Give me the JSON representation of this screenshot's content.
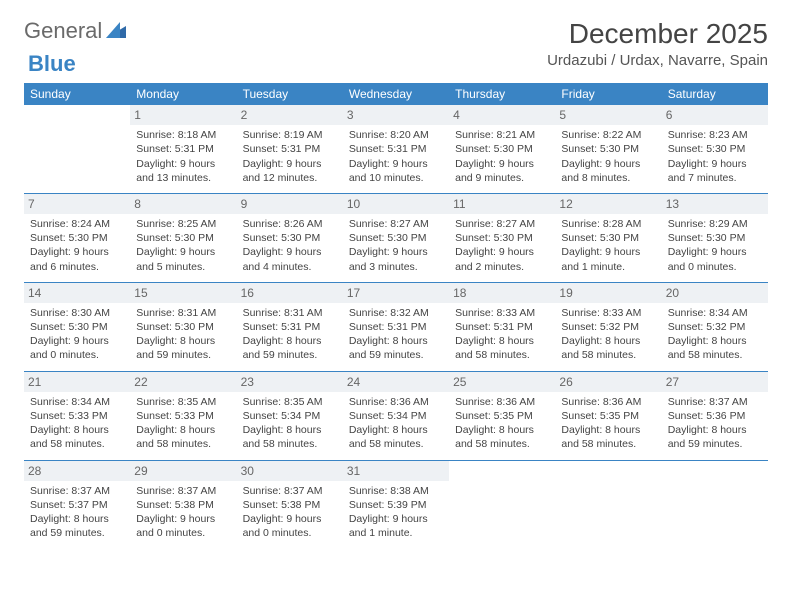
{
  "logo": {
    "text_general": "General",
    "text_blue": "Blue"
  },
  "title": "December 2025",
  "location": "Urdazubi / Urdax, Navarre, Spain",
  "colors": {
    "header_bg": "#3a84c4",
    "header_text": "#ffffff",
    "daynum_bg": "#eef1f4",
    "row_border": "#3a84c4",
    "text": "#444444"
  },
  "weekdays": [
    "Sunday",
    "Monday",
    "Tuesday",
    "Wednesday",
    "Thursday",
    "Friday",
    "Saturday"
  ],
  "weeks": [
    [
      {
        "empty": true
      },
      {
        "num": "1",
        "l1": "Sunrise: 8:18 AM",
        "l2": "Sunset: 5:31 PM",
        "l3": "Daylight: 9 hours",
        "l4": "and 13 minutes."
      },
      {
        "num": "2",
        "l1": "Sunrise: 8:19 AM",
        "l2": "Sunset: 5:31 PM",
        "l3": "Daylight: 9 hours",
        "l4": "and 12 minutes."
      },
      {
        "num": "3",
        "l1": "Sunrise: 8:20 AM",
        "l2": "Sunset: 5:31 PM",
        "l3": "Daylight: 9 hours",
        "l4": "and 10 minutes."
      },
      {
        "num": "4",
        "l1": "Sunrise: 8:21 AM",
        "l2": "Sunset: 5:30 PM",
        "l3": "Daylight: 9 hours",
        "l4": "and 9 minutes."
      },
      {
        "num": "5",
        "l1": "Sunrise: 8:22 AM",
        "l2": "Sunset: 5:30 PM",
        "l3": "Daylight: 9 hours",
        "l4": "and 8 minutes."
      },
      {
        "num": "6",
        "l1": "Sunrise: 8:23 AM",
        "l2": "Sunset: 5:30 PM",
        "l3": "Daylight: 9 hours",
        "l4": "and 7 minutes."
      }
    ],
    [
      {
        "num": "7",
        "l1": "Sunrise: 8:24 AM",
        "l2": "Sunset: 5:30 PM",
        "l3": "Daylight: 9 hours",
        "l4": "and 6 minutes."
      },
      {
        "num": "8",
        "l1": "Sunrise: 8:25 AM",
        "l2": "Sunset: 5:30 PM",
        "l3": "Daylight: 9 hours",
        "l4": "and 5 minutes."
      },
      {
        "num": "9",
        "l1": "Sunrise: 8:26 AM",
        "l2": "Sunset: 5:30 PM",
        "l3": "Daylight: 9 hours",
        "l4": "and 4 minutes."
      },
      {
        "num": "10",
        "l1": "Sunrise: 8:27 AM",
        "l2": "Sunset: 5:30 PM",
        "l3": "Daylight: 9 hours",
        "l4": "and 3 minutes."
      },
      {
        "num": "11",
        "l1": "Sunrise: 8:27 AM",
        "l2": "Sunset: 5:30 PM",
        "l3": "Daylight: 9 hours",
        "l4": "and 2 minutes."
      },
      {
        "num": "12",
        "l1": "Sunrise: 8:28 AM",
        "l2": "Sunset: 5:30 PM",
        "l3": "Daylight: 9 hours",
        "l4": "and 1 minute."
      },
      {
        "num": "13",
        "l1": "Sunrise: 8:29 AM",
        "l2": "Sunset: 5:30 PM",
        "l3": "Daylight: 9 hours",
        "l4": "and 0 minutes."
      }
    ],
    [
      {
        "num": "14",
        "l1": "Sunrise: 8:30 AM",
        "l2": "Sunset: 5:30 PM",
        "l3": "Daylight: 9 hours",
        "l4": "and 0 minutes."
      },
      {
        "num": "15",
        "l1": "Sunrise: 8:31 AM",
        "l2": "Sunset: 5:30 PM",
        "l3": "Daylight: 8 hours",
        "l4": "and 59 minutes."
      },
      {
        "num": "16",
        "l1": "Sunrise: 8:31 AM",
        "l2": "Sunset: 5:31 PM",
        "l3": "Daylight: 8 hours",
        "l4": "and 59 minutes."
      },
      {
        "num": "17",
        "l1": "Sunrise: 8:32 AM",
        "l2": "Sunset: 5:31 PM",
        "l3": "Daylight: 8 hours",
        "l4": "and 59 minutes."
      },
      {
        "num": "18",
        "l1": "Sunrise: 8:33 AM",
        "l2": "Sunset: 5:31 PM",
        "l3": "Daylight: 8 hours",
        "l4": "and 58 minutes."
      },
      {
        "num": "19",
        "l1": "Sunrise: 8:33 AM",
        "l2": "Sunset: 5:32 PM",
        "l3": "Daylight: 8 hours",
        "l4": "and 58 minutes."
      },
      {
        "num": "20",
        "l1": "Sunrise: 8:34 AM",
        "l2": "Sunset: 5:32 PM",
        "l3": "Daylight: 8 hours",
        "l4": "and 58 minutes."
      }
    ],
    [
      {
        "num": "21",
        "l1": "Sunrise: 8:34 AM",
        "l2": "Sunset: 5:33 PM",
        "l3": "Daylight: 8 hours",
        "l4": "and 58 minutes."
      },
      {
        "num": "22",
        "l1": "Sunrise: 8:35 AM",
        "l2": "Sunset: 5:33 PM",
        "l3": "Daylight: 8 hours",
        "l4": "and 58 minutes."
      },
      {
        "num": "23",
        "l1": "Sunrise: 8:35 AM",
        "l2": "Sunset: 5:34 PM",
        "l3": "Daylight: 8 hours",
        "l4": "and 58 minutes."
      },
      {
        "num": "24",
        "l1": "Sunrise: 8:36 AM",
        "l2": "Sunset: 5:34 PM",
        "l3": "Daylight: 8 hours",
        "l4": "and 58 minutes."
      },
      {
        "num": "25",
        "l1": "Sunrise: 8:36 AM",
        "l2": "Sunset: 5:35 PM",
        "l3": "Daylight: 8 hours",
        "l4": "and 58 minutes."
      },
      {
        "num": "26",
        "l1": "Sunrise: 8:36 AM",
        "l2": "Sunset: 5:35 PM",
        "l3": "Daylight: 8 hours",
        "l4": "and 58 minutes."
      },
      {
        "num": "27",
        "l1": "Sunrise: 8:37 AM",
        "l2": "Sunset: 5:36 PM",
        "l3": "Daylight: 8 hours",
        "l4": "and 59 minutes."
      }
    ],
    [
      {
        "num": "28",
        "l1": "Sunrise: 8:37 AM",
        "l2": "Sunset: 5:37 PM",
        "l3": "Daylight: 8 hours",
        "l4": "and 59 minutes."
      },
      {
        "num": "29",
        "l1": "Sunrise: 8:37 AM",
        "l2": "Sunset: 5:38 PM",
        "l3": "Daylight: 9 hours",
        "l4": "and 0 minutes."
      },
      {
        "num": "30",
        "l1": "Sunrise: 8:37 AM",
        "l2": "Sunset: 5:38 PM",
        "l3": "Daylight: 9 hours",
        "l4": "and 0 minutes."
      },
      {
        "num": "31",
        "l1": "Sunrise: 8:38 AM",
        "l2": "Sunset: 5:39 PM",
        "l3": "Daylight: 9 hours",
        "l4": "and 1 minute."
      },
      {
        "empty": true
      },
      {
        "empty": true
      },
      {
        "empty": true
      }
    ]
  ]
}
